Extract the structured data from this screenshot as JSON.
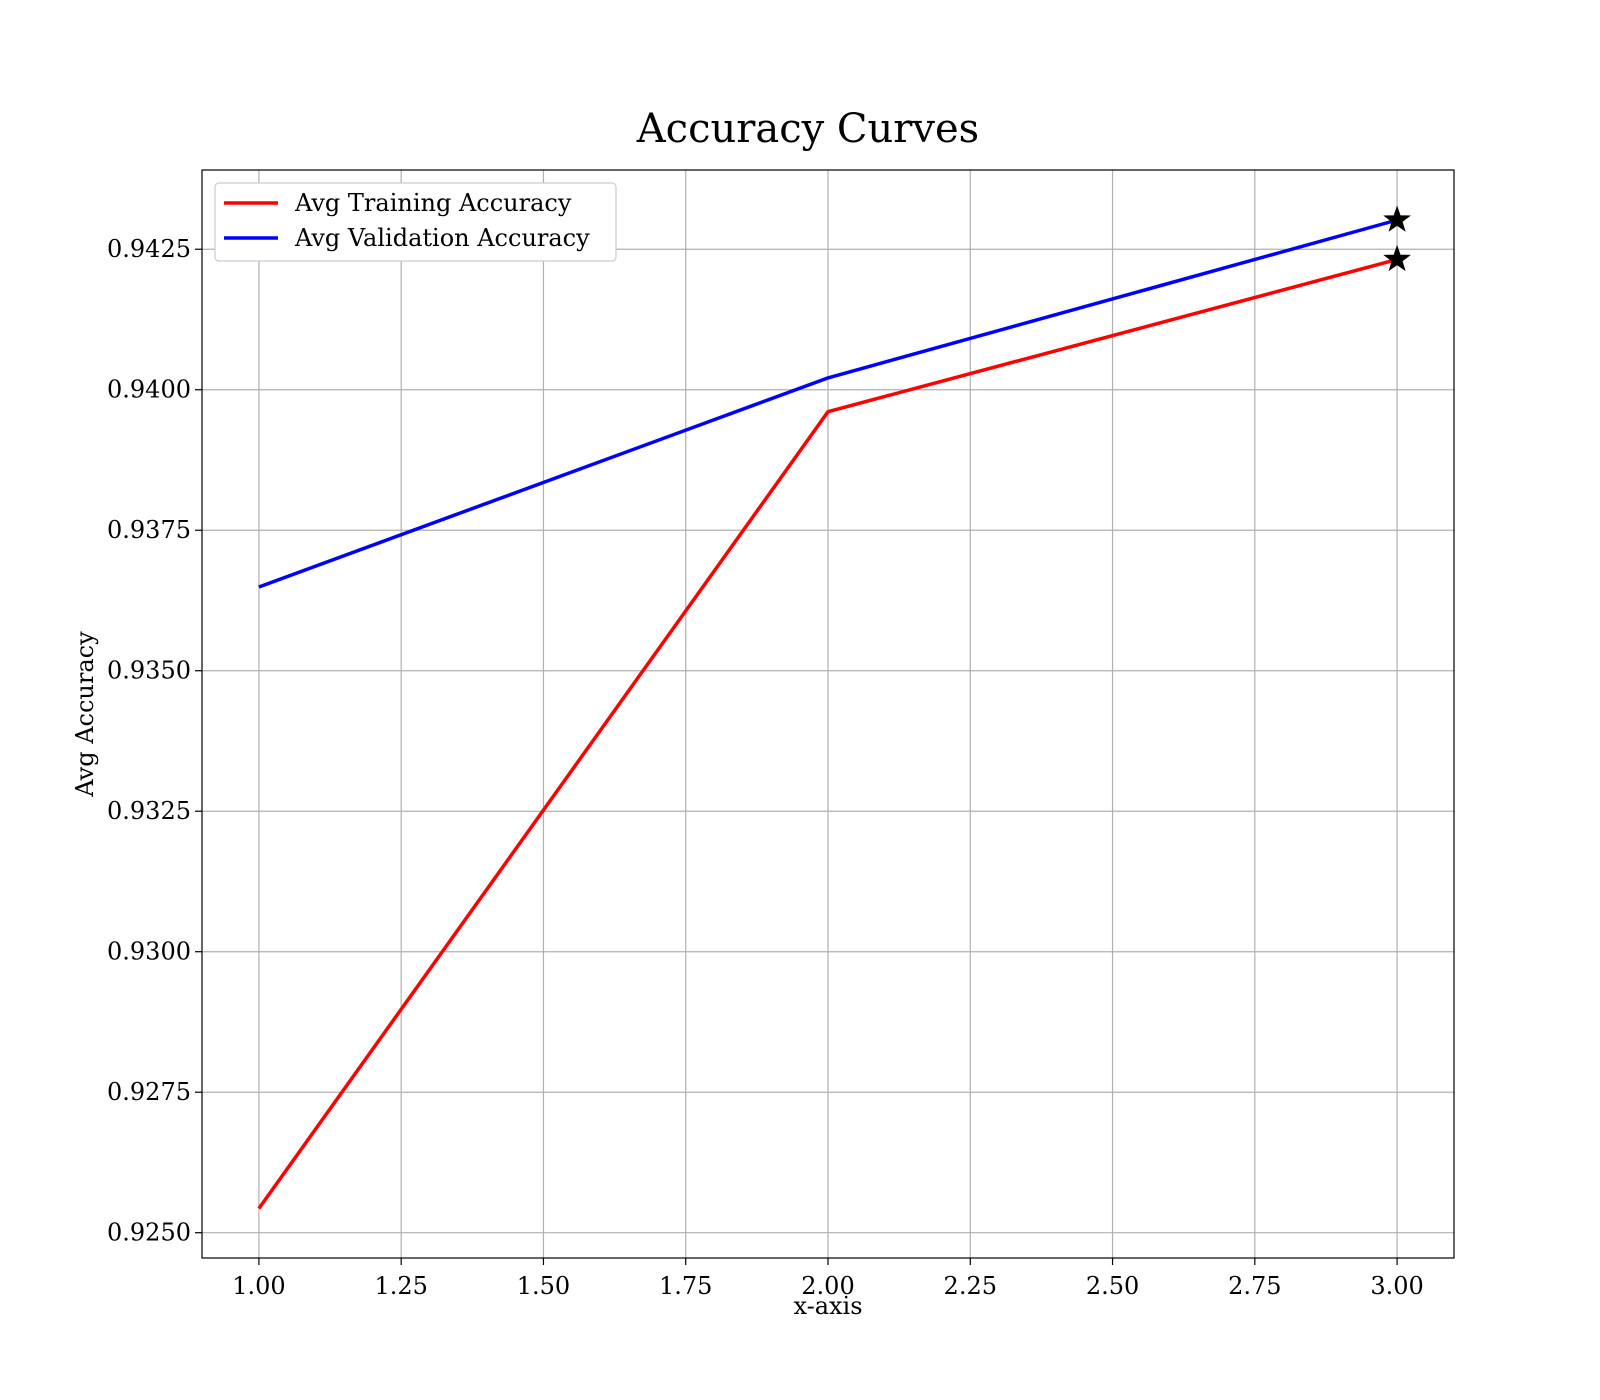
{
  "chart_data": {
    "type": "line",
    "title": "Accuracy Curves",
    "xlabel": "x-axis",
    "ylabel": "Avg Accuracy",
    "xlim": [
      0.9,
      3.1
    ],
    "ylim": [
      0.92455,
      0.94391
    ],
    "x_ticks": [
      "1.00",
      "1.25",
      "1.50",
      "1.75",
      "2.00",
      "2.25",
      "2.50",
      "2.75",
      "3.00"
    ],
    "y_ticks": [
      "0.9250",
      "0.9275",
      "0.9300",
      "0.9325",
      "0.9350",
      "0.9375",
      "0.9400",
      "0.9425"
    ],
    "grid": true,
    "legend_position": "top-left",
    "series": [
      {
        "name": "Avg Training Accuracy",
        "color": "#ff0000",
        "x": [
          1,
          2,
          3
        ],
        "y": [
          0.92543,
          0.93961,
          0.94232
        ]
      },
      {
        "name": "Avg Validation Accuracy",
        "color": "#0000ff",
        "x": [
          1,
          2,
          3
        ],
        "y": [
          0.93649,
          0.94021,
          0.94302
        ]
      }
    ],
    "markers": [
      {
        "series": "Avg Training Accuracy",
        "x": 3,
        "y": 0.94232,
        "symbol": "star",
        "color": "#000000"
      },
      {
        "series": "Avg Validation Accuracy",
        "x": 3,
        "y": 0.94302,
        "symbol": "star",
        "color": "#000000"
      }
    ]
  }
}
